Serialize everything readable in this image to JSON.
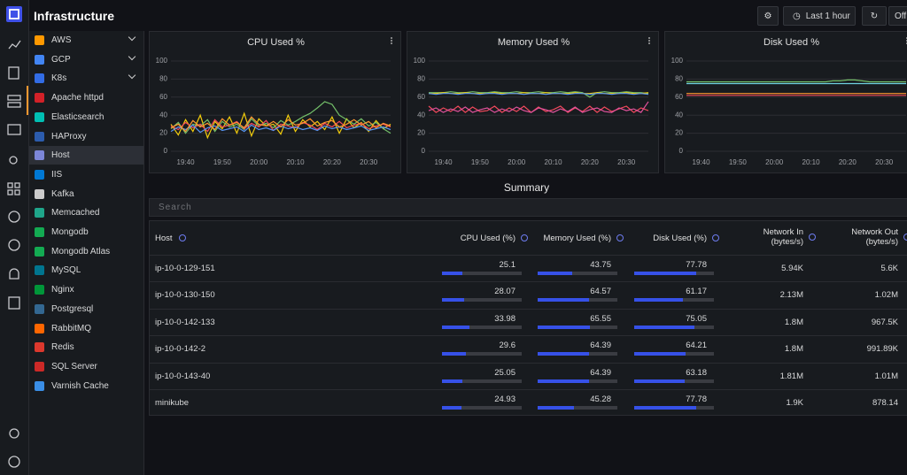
{
  "header": {
    "title": "Infrastructure",
    "time_range": "Last 1 hour",
    "refresh": "Off"
  },
  "sidebar": {
    "items": [
      "AWS",
      "GCP",
      "K8s",
      "Apache httpd",
      "Elasticsearch",
      "HAProxy",
      "Host",
      "IIS",
      "Kafka",
      "Memcached",
      "Mongodb",
      "Mongodb Atlas",
      "MySQL",
      "Nginx",
      "Postgresql",
      "RabbitMQ",
      "Redis",
      "SQL Server",
      "Varnish Cache"
    ],
    "selected": "Host"
  },
  "chart_data": [
    {
      "type": "line",
      "title": "CPU Used %",
      "categories": [
        null,
        null,
        "19:40",
        null,
        null,
        null,
        null,
        "19:50",
        null,
        null,
        null,
        null,
        "20:00",
        null,
        null,
        null,
        null,
        "20:10",
        null,
        null,
        null,
        null,
        "20:20",
        null,
        null,
        null,
        null,
        "20:30",
        null,
        null,
        null
      ],
      "ylim": [
        0,
        100
      ],
      "yticks": [
        0,
        20,
        40,
        60,
        80,
        100
      ],
      "grid": true,
      "series": [
        {
          "color": "#f2cc0c",
          "values": [
            30,
            18,
            35,
            22,
            40,
            15,
            33,
            25,
            38,
            20,
            42,
            17,
            36,
            28,
            30,
            19,
            40,
            22,
            35,
            27,
            33,
            24,
            38,
            20,
            36,
            26,
            32,
            22,
            34,
            25,
            30
          ]
        },
        {
          "color": "#73bf69",
          "values": [
            25,
            32,
            20,
            30,
            28,
            35,
            22,
            33,
            27,
            30,
            24,
            36,
            28,
            31,
            26,
            34,
            29,
            33,
            38,
            42,
            48,
            55,
            52,
            40,
            35,
            30,
            36,
            28,
            32,
            25,
            20
          ]
        },
        {
          "color": "#f2495c",
          "values": [
            28,
            24,
            32,
            26,
            30,
            22,
            35,
            27,
            29,
            33,
            25,
            31,
            27,
            34,
            23,
            30,
            28,
            26,
            32,
            29,
            24,
            31,
            27,
            33,
            26,
            29,
            31,
            25,
            28,
            30,
            27
          ]
        },
        {
          "color": "#5794f2",
          "values": [
            22,
            27,
            24,
            29,
            21,
            26,
            28,
            23,
            25,
            27,
            22,
            29,
            24,
            26,
            23,
            28,
            25,
            27,
            24,
            26,
            23,
            28,
            25,
            27,
            24,
            26,
            28,
            23,
            25,
            27,
            24
          ]
        },
        {
          "color": "#ff9830",
          "values": [
            26,
            30,
            22,
            34,
            27,
            31,
            24,
            36,
            29,
            32,
            26,
            38,
            30,
            28,
            33,
            27,
            35,
            29,
            31,
            36,
            28,
            32,
            34,
            27,
            30,
            35,
            29,
            33,
            26,
            31,
            28
          ]
        }
      ]
    },
    {
      "type": "line",
      "title": "Memory Used %",
      "categories": [
        null,
        null,
        "19:40",
        null,
        null,
        null,
        null,
        "19:50",
        null,
        null,
        null,
        null,
        "20:00",
        null,
        null,
        null,
        null,
        "20:10",
        null,
        null,
        null,
        null,
        "20:20",
        null,
        null,
        null,
        null,
        "20:30",
        null,
        null,
        null
      ],
      "ylim": [
        0,
        100
      ],
      "yticks": [
        0,
        20,
        40,
        60,
        80,
        100
      ],
      "grid": true,
      "series": [
        {
          "color": "#73bf69",
          "values": [
            65,
            65,
            65,
            66,
            65,
            65,
            66,
            65,
            65,
            66,
            65,
            65,
            66,
            65,
            65,
            66,
            65,
            65,
            66,
            65,
            66,
            65,
            60,
            65,
            66,
            65,
            65,
            66,
            65,
            65,
            64
          ]
        },
        {
          "color": "#f2cc0c",
          "values": [
            64,
            64,
            65,
            64,
            64,
            65,
            64,
            64,
            64,
            65,
            64,
            64,
            64,
            65,
            64,
            64,
            65,
            64,
            64,
            64,
            65,
            64,
            64,
            65,
            64,
            64,
            64,
            65,
            64,
            64,
            65
          ]
        },
        {
          "color": "#5794f2",
          "values": [
            64,
            63,
            64,
            64,
            63,
            64,
            64,
            63,
            64,
            64,
            63,
            64,
            64,
            63,
            64,
            64,
            63,
            64,
            64,
            63,
            64,
            64,
            63,
            64,
            64,
            63,
            64,
            64,
            63,
            64,
            63
          ]
        },
        {
          "color": "#f2495c",
          "values": [
            50,
            43,
            48,
            44,
            50,
            43,
            49,
            44,
            45,
            50,
            43,
            48,
            44,
            50,
            43,
            49,
            44,
            46,
            50,
            43,
            48,
            44,
            50,
            43,
            49,
            44,
            47,
            50,
            43,
            48,
            45
          ]
        },
        {
          "color": "#e0529c",
          "values": [
            45,
            48,
            43,
            47,
            44,
            49,
            43,
            46,
            48,
            43,
            47,
            44,
            49,
            45,
            43,
            48,
            46,
            43,
            47,
            44,
            49,
            43,
            46,
            48,
            44,
            43,
            48,
            45,
            47,
            43,
            55
          ]
        }
      ]
    },
    {
      "type": "line",
      "title": "Disk Used %",
      "categories": [
        null,
        null,
        "19:40",
        null,
        null,
        null,
        null,
        "19:50",
        null,
        null,
        null,
        null,
        "20:00",
        null,
        null,
        null,
        null,
        "20:10",
        null,
        null,
        null,
        null,
        "20:20",
        null,
        null,
        null,
        null,
        "20:30",
        null,
        null,
        null
      ],
      "ylim": [
        0,
        100
      ],
      "yticks": [
        0,
        20,
        40,
        60,
        80,
        100
      ],
      "grid": true,
      "series": [
        {
          "color": "#73bf69",
          "values": [
            77,
            77,
            77,
            77,
            77,
            77,
            77,
            77,
            77,
            77,
            77,
            77,
            77,
            77,
            77,
            77,
            77,
            77,
            77,
            77,
            78,
            78,
            79,
            79,
            78,
            77,
            77,
            77,
            77,
            77,
            77
          ]
        },
        {
          "color": "#6ed0e0",
          "values": [
            75,
            75,
            75,
            75,
            75,
            75,
            75,
            75,
            75,
            75,
            75,
            75,
            75,
            75,
            75,
            75,
            75,
            75,
            75,
            75,
            75,
            75,
            75,
            75,
            75,
            75,
            75,
            75,
            75,
            75,
            75
          ]
        },
        {
          "color": "#ff9830",
          "values": [
            64,
            64,
            64,
            64,
            64,
            64,
            64,
            64,
            64,
            64,
            64,
            64,
            64,
            64,
            64,
            64,
            64,
            64,
            64,
            64,
            64,
            64,
            64,
            64,
            64,
            64,
            64,
            64,
            64,
            64,
            64
          ]
        },
        {
          "color": "#f2495c",
          "values": [
            62,
            62,
            62,
            62,
            62,
            62,
            62,
            62,
            62,
            62,
            62,
            62,
            62,
            62,
            62,
            62,
            62,
            62,
            62,
            62,
            62,
            62,
            62,
            62,
            62,
            62,
            62,
            62,
            62,
            62,
            62
          ]
        }
      ]
    }
  ],
  "summary": {
    "title": "Summary",
    "search_placeholder": "Search",
    "table": {
      "columns": [
        "Host",
        "CPU Used (%)",
        "Memory Used (%)",
        "Disk Used (%)",
        "Network In (bytes/s)",
        "Network Out (bytes/s)"
      ],
      "rows": [
        [
          "ip-10-0-129-151",
          25.1,
          43.75,
          77.78,
          "5.94K",
          "5.6K"
        ],
        [
          "ip-10-0-130-150",
          28.07,
          64.57,
          61.17,
          "2.13M",
          "1.02M"
        ],
        [
          "ip-10-0-142-133",
          33.98,
          65.55,
          75.05,
          "1.8M",
          "967.5K"
        ],
        [
          "ip-10-0-142-2",
          29.6,
          64.39,
          64.21,
          "1.8M",
          "991.89K"
        ],
        [
          "ip-10-0-143-40",
          25.05,
          64.39,
          63.18,
          "1.81M",
          "1.01M"
        ],
        [
          "minikube",
          24.93,
          45.28,
          77.78,
          "1.9K",
          "878.14"
        ]
      ]
    }
  }
}
